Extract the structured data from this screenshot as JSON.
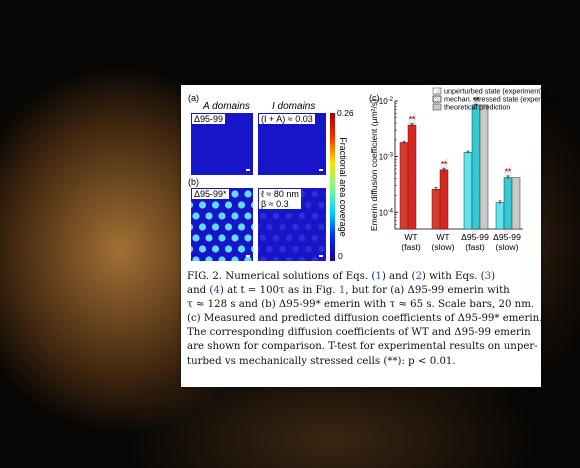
{
  "figure": {
    "panel_a_label": "(a)",
    "panel_b_label": "(b)",
    "panel_c_label": "(c)",
    "col_a_header": "A domains",
    "col_i_header": "I domains",
    "row1_left_label": "Δ95-99",
    "row1_right_label": "(I + A) ≈ 0.03",
    "row2_left_label": "Δ95-99*",
    "row2_right_line1": "ℓ ≈ 80 nm",
    "row2_right_line2": "β ≈ 0.3",
    "colorbar": {
      "max_label": "0.26",
      "min_label": "0",
      "title": "Fractional area coverage",
      "colors": [
        "#1a00a0",
        "#0028ff",
        "#00d8ff",
        "#80ff80",
        "#ffe000",
        "#ff3000",
        "#a00000"
      ]
    },
    "map_colors": {
      "blue": "#1616c8",
      "dot": "#66d9ff",
      "faint_dot": "#3434dc"
    }
  },
  "chart_data": {
    "type": "bar",
    "ylabel": "Emerin diffusion coefficient (µm²/s)",
    "yscale": "log",
    "ylim": [
      5e-05,
      0.01
    ],
    "yticks": [
      {
        "value": 0.01,
        "label": "10^-2"
      },
      {
        "value": 0.001,
        "label": "10^-3"
      },
      {
        "value": 0.0001,
        "label": "10^-4"
      }
    ],
    "categories": [
      {
        "line1": "WT",
        "line2": "(fast)"
      },
      {
        "line1": "WT",
        "line2": "(slow)"
      },
      {
        "line1": "Δ95-99",
        "line2": "(fast)"
      },
      {
        "line1": "Δ95-99",
        "line2": "(slow)"
      }
    ],
    "legend_placement": "top",
    "series": [
      {
        "name": "unperturbed state (experiment)",
        "values": [
          0.0018,
          0.00026,
          0.0012,
          0.00015
        ],
        "errors": [
          0.0001,
          2e-05,
          6e-05,
          1e-05
        ]
      },
      {
        "name": "mechan. stressed state (experiment)",
        "values": [
          0.0037,
          0.00058,
          0.0085,
          0.00042
        ],
        "errors": [
          0.0002,
          4e-05,
          0.0003,
          3e-05
        ]
      },
      {
        "name": "theoretical prediction",
        "values": [
          null,
          null,
          0.0085,
          0.00042
        ]
      }
    ],
    "annotations": [
      {
        "category": 0,
        "series": 1,
        "text": "**"
      },
      {
        "category": 1,
        "series": 1,
        "text": "**"
      },
      {
        "category": 2,
        "series": 1,
        "text": "**"
      },
      {
        "category": 3,
        "series": 1,
        "text": "**"
      }
    ],
    "colors": {
      "wt_unperturbed": "#d83a30",
      "wt_stressed": "#e8271e",
      "mut_unperturbed": "#5ee6ee",
      "mut_stressed": "#37d6df",
      "theory": "#c8c8c8",
      "annot_wt": "#c81e14",
      "annot_mut": "#222222"
    }
  },
  "caption": {
    "lines": [
      [
        {
          "t": "FIG. 2. Numerical solutions of Eqs. ("
        },
        {
          "t": "1",
          "ref": true
        },
        {
          "t": ") and ("
        },
        {
          "t": "2",
          "ref": true
        },
        {
          "t": ") with Eqs. ("
        },
        {
          "t": "3",
          "ref": true
        },
        {
          "t": ")"
        }
      ],
      [
        {
          "t": "and ("
        },
        {
          "t": "4",
          "ref": true
        },
        {
          "t": ") at t = 100τ as in Fig. "
        },
        {
          "t": "1",
          "ref": true
        },
        {
          "t": ", but for (a) Δ95-99 emerin with"
        }
      ],
      [
        {
          "t": "τ ≈ 128 s and (b) Δ95-99* emerin with τ ≈ 65 s. Scale bars, 20 nm."
        }
      ],
      [
        {
          "t": "(c) Measured and predicted diffusion coefficients of Δ95-99* emerin."
        }
      ],
      [
        {
          "t": "The corresponding diffusion coefficients of WT and Δ95-99 emerin"
        }
      ],
      [
        {
          "t": "are shown for comparison. T-test for experimental results on unper-"
        }
      ],
      [
        {
          "t": "turbed vs mechanically stressed cells (**): p < 0.01."
        }
      ]
    ]
  }
}
